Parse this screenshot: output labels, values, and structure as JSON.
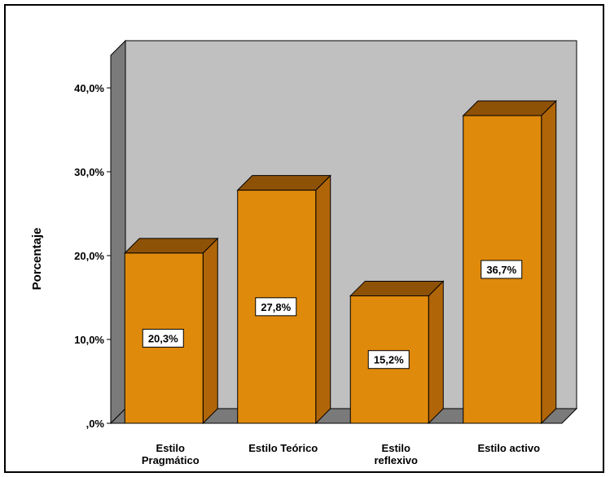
{
  "chart_data": {
    "type": "bar",
    "categories": [
      [
        "Estilo",
        "Pragmático"
      ],
      [
        "Estilo Teórico"
      ],
      [
        "Estilo",
        "reflexivo"
      ],
      [
        "Estilo activo"
      ]
    ],
    "values": [
      20.3,
      27.8,
      15.2,
      36.7
    ],
    "data_labels": [
      "20,3%",
      "27,8%",
      "15,2%",
      "36,7%"
    ],
    "title": "",
    "xlabel": "",
    "ylabel": "Porcentaje",
    "ylim": [
      0,
      40
    ],
    "yticks": [
      0,
      10,
      20,
      30,
      40
    ],
    "ytick_labels": [
      ",0%",
      "10,0%",
      "20,0%",
      "30,0%",
      "40,0%"
    ],
    "grid": false,
    "style": "3d-bar",
    "colors": {
      "bar_front": "#e08a0c",
      "bar_top": "#8e5207",
      "bar_side": "#b06508",
      "back_wall": "#c0c0c0",
      "left_wall": "#7a7a7a",
      "floor": "#7a7a7a"
    }
  }
}
